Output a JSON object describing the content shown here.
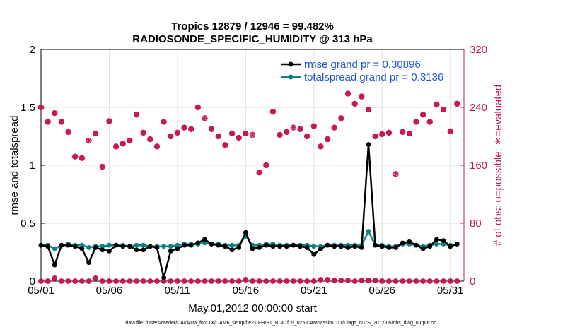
{
  "chart_data": {
    "type": "line",
    "title_line1": "Tropics 12879 / 12946 = 99.482%",
    "title_line2": "RADIOSONDE_SPECIFIC_HUMIDITY @ 313 hPa",
    "xlabel": "May.01,2012 00:00:00 start",
    "ylabel_left": "rmse and totalspread",
    "ylabel_right": "# of obs: o=possible; ∗=evaluated",
    "footer": "data file: /Users/raeder/DAI/ATM_forcXX/CAM6_setup/f.e21.FHIST_BGC.f09_025.CAM6assim.011/Diags_NTrS_2012-05/obs_diag_output.nc",
    "xlim": [
      1,
      32
    ],
    "ylim_left": [
      0,
      2
    ],
    "ylim_right": [
      0,
      320
    ],
    "x_ticks": [
      1,
      6,
      11,
      16,
      21,
      26,
      31
    ],
    "x_tick_labels": [
      "05/01",
      "05/06",
      "05/11",
      "05/16",
      "05/21",
      "05/26",
      "05/31"
    ],
    "y_left_ticks": [
      0,
      0.5,
      1,
      1.5,
      2
    ],
    "y_left_tick_labels": [
      "0",
      "0.5",
      "1",
      "1.5",
      "2"
    ],
    "y_right_ticks": [
      0,
      80,
      160,
      240,
      320
    ],
    "y_right_tick_labels": [
      "0",
      "80",
      "160",
      "240",
      "320"
    ],
    "colors": {
      "rmse": "#000000",
      "spread": "#0f8080",
      "obs": "#c8185a",
      "legend_text": "#1f54d9",
      "grid": "#e2e2e2"
    },
    "x": [
      1,
      1.5,
      2,
      2.5,
      3,
      3.5,
      4,
      4.5,
      5,
      5.5,
      6,
      6.5,
      7,
      7.5,
      8,
      8.5,
      9,
      9.5,
      10,
      10.5,
      11,
      11.5,
      12,
      12.5,
      13,
      13.5,
      14,
      14.5,
      15,
      15.5,
      16,
      16.5,
      17,
      17.5,
      18,
      18.5,
      19,
      19.5,
      20,
      20.5,
      21,
      21.5,
      22,
      22.5,
      23,
      23.5,
      24,
      24.5,
      25,
      25.5,
      26,
      26.5,
      27,
      27.5,
      28,
      28.5,
      29,
      29.5,
      30,
      30.5,
      31,
      31.5
    ],
    "series": [
      {
        "name": "rmse",
        "legend": "rmse grand pr = 0.30896",
        "values": [
          0.31,
          0.3,
          0.14,
          0.31,
          0.31,
          0.3,
          0.28,
          0.16,
          0.29,
          0.27,
          0.26,
          0.31,
          0.3,
          0.3,
          0.27,
          0.27,
          0.3,
          0.29,
          0.03,
          0.26,
          0.28,
          0.31,
          0.31,
          0.33,
          0.36,
          0.32,
          0.31,
          0.3,
          0.27,
          0.29,
          0.42,
          0.28,
          0.29,
          0.31,
          0.3,
          0.3,
          0.3,
          0.31,
          0.3,
          0.29,
          0.23,
          0.28,
          0.31,
          0.3,
          0.3,
          0.29,
          0.3,
          0.29,
          1.18,
          0.31,
          0.3,
          0.29,
          0.29,
          0.33,
          0.34,
          0.31,
          0.28,
          0.3,
          0.36,
          0.35,
          0.3,
          0.32
        ]
      },
      {
        "name": "totalspread",
        "legend": "totalspread grand pr = 0.3136",
        "values": [
          0.31,
          0.31,
          0.28,
          0.31,
          0.32,
          0.31,
          0.31,
          0.29,
          0.3,
          0.3,
          0.31,
          0.31,
          0.31,
          0.3,
          0.31,
          0.31,
          0.3,
          0.3,
          0.3,
          0.3,
          0.31,
          0.32,
          0.32,
          0.32,
          0.33,
          0.32,
          0.32,
          0.31,
          0.31,
          0.31,
          0.39,
          0.31,
          0.31,
          0.32,
          0.32,
          0.31,
          0.31,
          0.31,
          0.31,
          0.31,
          0.3,
          0.3,
          0.31,
          0.31,
          0.31,
          0.31,
          0.31,
          0.31,
          0.43,
          0.31,
          0.31,
          0.3,
          0.3,
          0.32,
          0.32,
          0.31,
          0.3,
          0.31,
          0.32,
          0.32,
          0.31,
          0.32
        ]
      },
      {
        "name": "obs_possible",
        "values": [
          240,
          220,
          232,
          220,
          206,
          172,
          170,
          194,
          204,
          158,
          221,
          186,
          190,
          194,
          230,
          205,
          196,
          186,
          220,
          200,
          205,
          212,
          210,
          240,
          225,
          210,
          200,
          188,
          204,
          198,
          204,
          202,
          150,
          160,
          234,
          202,
          206,
          212,
          210,
          200,
          214,
          186,
          196,
          212,
          225,
          259,
          245,
          255,
          237,
          200,
          203,
          205,
          148,
          206,
          204,
          220,
          230,
          220,
          244,
          237,
          207,
          245
        ]
      },
      {
        "name": "obs_evaluated",
        "values": [
          240,
          220,
          232,
          220,
          206,
          172,
          170,
          194,
          204,
          158,
          221,
          186,
          190,
          194,
          230,
          205,
          196,
          186,
          220,
          200,
          205,
          212,
          210,
          240,
          225,
          210,
          200,
          188,
          204,
          198,
          204,
          202,
          150,
          160,
          234,
          202,
          206,
          212,
          210,
          200,
          214,
          186,
          196,
          212,
          225,
          259,
          245,
          255,
          237,
          200,
          203,
          205,
          148,
          206,
          204,
          220,
          230,
          220,
          244,
          237,
          207,
          245
        ]
      },
      {
        "name": "obs_rejected_possible",
        "values": [
          0,
          0,
          4,
          0,
          0,
          0,
          0,
          0,
          4,
          0,
          0,
          0,
          0,
          0,
          0,
          0,
          0,
          0,
          0,
          0,
          0,
          0,
          0,
          0,
          0,
          0,
          0,
          0,
          0,
          0,
          2,
          0,
          0,
          0,
          0,
          0,
          0,
          0,
          0,
          0,
          0,
          2,
          2,
          1,
          1,
          1,
          0,
          1,
          1,
          1,
          0,
          0,
          0,
          0,
          0,
          0,
          0,
          0,
          0,
          0,
          0,
          0
        ]
      }
    ],
    "open_marker_indices": [
      7,
      24,
      31,
      37,
      52
    ]
  }
}
